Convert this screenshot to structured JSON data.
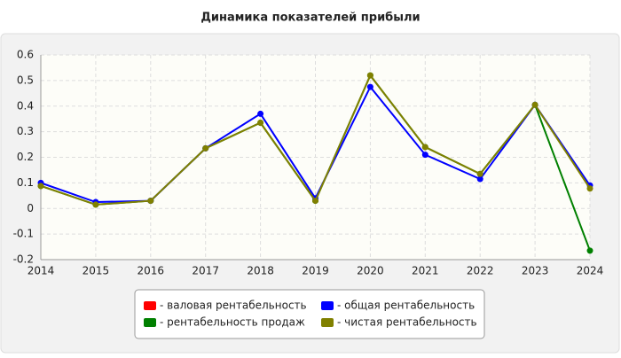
{
  "chart_data": {
    "type": "line",
    "title": "Динамика показателей прибыли",
    "x": [
      2014,
      2015,
      2016,
      2017,
      2018,
      2019,
      2020,
      2021,
      2022,
      2023,
      2024
    ],
    "xlim": [
      2014,
      2024
    ],
    "xticks": [
      2014,
      2015,
      2016,
      2017,
      2018,
      2019,
      2020,
      2021,
      2022,
      2023,
      2024
    ],
    "ylim": [
      -0.2,
      0.6
    ],
    "yticks": [
      -0.2,
      -0.1,
      0,
      0.1,
      0.2,
      0.3,
      0.4,
      0.5,
      0.6
    ],
    "grid": true,
    "series": [
      {
        "name": "- валовая рентабельность",
        "color": "#ff0000",
        "values": [
          null,
          null,
          null,
          null,
          null,
          null,
          null,
          null,
          null,
          null,
          null
        ]
      },
      {
        "name": "- рентабельность продаж",
        "color": "#008000",
        "values": [
          0.088,
          0.015,
          0.03,
          0.235,
          0.335,
          0.03,
          0.52,
          0.24,
          0.135,
          0.405,
          -0.165
        ]
      },
      {
        "name": "- общая рентабельность",
        "color": "#0000ff",
        "values": [
          0.1,
          0.025,
          0.03,
          0.235,
          0.37,
          0.04,
          0.475,
          0.21,
          0.115,
          0.405,
          0.09
        ]
      },
      {
        "name": "- чистая рентабельность",
        "color": "#808000",
        "values": [
          0.088,
          0.015,
          0.03,
          0.235,
          0.335,
          0.03,
          0.52,
          0.24,
          0.135,
          0.405,
          0.078
        ]
      }
    ]
  }
}
